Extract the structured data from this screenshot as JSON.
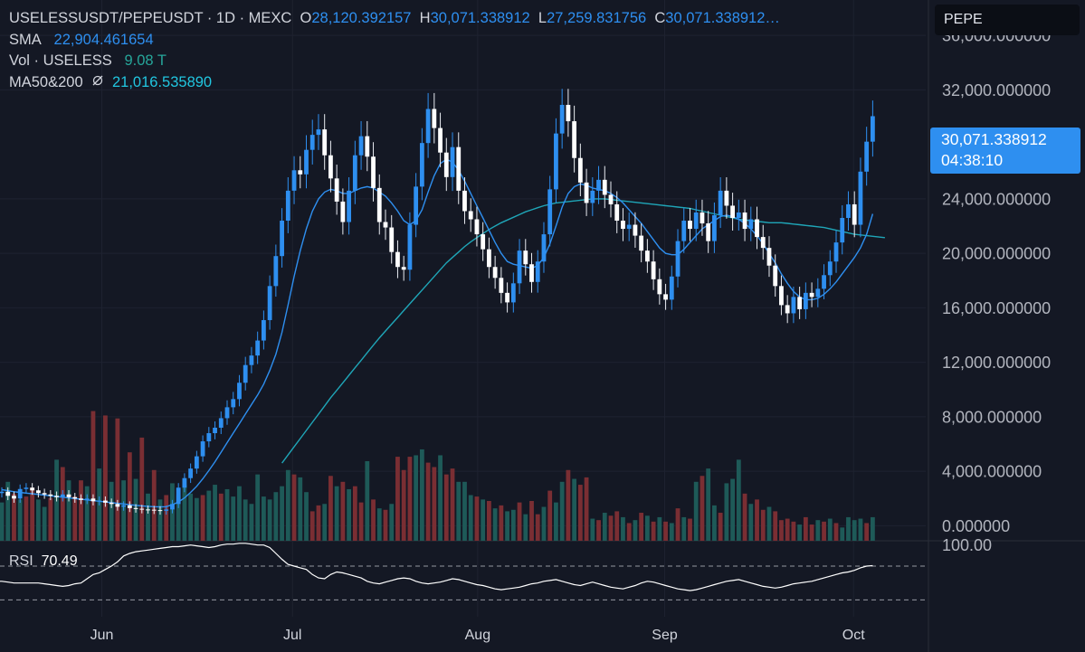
{
  "header": {
    "pair": "USELESSUSDT/PEPEUSDT · 1D · MEXC",
    "ohlc": {
      "o_label": "O",
      "o": "28,120.392157",
      "h_label": "H",
      "h": "30,071.338912",
      "l_label": "L",
      "l": "27,259.831756",
      "c_label": "C",
      "c": "30,071.338912…"
    },
    "sma_label": "SMA",
    "sma_value": "22,904.461654",
    "vol_label": "Vol · USELESS",
    "vol_value": "9.08 T",
    "ma_label": "MA50&200",
    "ma_icon": "hidden-eye-slash-icon",
    "ma_value": "21,016.535890"
  },
  "symbol_search": {
    "value": "PEPE"
  },
  "last_price": {
    "value": "30,071.338912",
    "countdown": "04:38:10"
  },
  "rsi": {
    "label": "RSI",
    "value": "70.49",
    "top_tick": "100.00"
  },
  "colors": {
    "background": "#141824",
    "up": "#2e8ff0",
    "up_body": "#ffffff",
    "down": "#ffffff",
    "volume_up": "#1e5a58",
    "volume_down": "#7a2e33",
    "sma": "#2e8ff0",
    "ma": "#1fa6b8",
    "rsi": "#ffffff"
  },
  "chart_data": {
    "type": "candlestick",
    "title": "USELESSUSDT/PEPEUSDT · 1D · MEXC",
    "y_ticks": [
      "36,000.000000",
      "32,000.000000",
      "24,000.000000",
      "20,000.000000",
      "16,000.000000",
      "12,000.000000",
      "8,000.000000",
      "4,000.000000",
      "0.000000"
    ],
    "y_tick_values": [
      36000,
      32000,
      24000,
      20000,
      16000,
      12000,
      8000,
      4000,
      0
    ],
    "x_ticks": [
      "Jun",
      "Jul",
      "Aug",
      "Sep",
      "Oct"
    ],
    "x_tick_values": [
      0.11,
      0.316,
      0.516,
      0.718,
      0.922
    ],
    "ylim": [
      -1100,
      38600
    ],
    "grid": true,
    "close": [
      2500,
      2200,
      2000,
      2700,
      2800,
      2600,
      2400,
      2300,
      2200,
      2100,
      2300,
      2100,
      2000,
      1900,
      2000,
      1800,
      1850,
      1700,
      1600,
      1400,
      1500,
      1300,
      1250,
      1200,
      1180,
      1150,
      1100,
      1200,
      1600,
      2800,
      3500,
      4200,
      5100,
      6200,
      6800,
      7200,
      7900,
      8700,
      9300,
      10500,
      11800,
      12500,
      13600,
      15100,
      17600,
      19800,
      22400,
      24600,
      26100,
      25800,
      27600,
      28700,
      29100,
      27200,
      25500,
      23800,
      22300,
      24600,
      27200,
      28600,
      27100,
      24800,
      22300,
      21900,
      20100,
      19000,
      18800,
      22100,
      24900,
      28100,
      30600,
      29200,
      27400,
      25600,
      27800,
      24600,
      23100,
      22500,
      21400,
      20300,
      19000,
      18200,
      17100,
      16400,
      17800,
      20200,
      19200,
      17900,
      19400,
      21400,
      24700,
      28800,
      30900,
      29700,
      27000,
      25200,
      23700,
      24600,
      25400,
      24300,
      23600,
      22400,
      21800,
      22100,
      21300,
      20200,
      19400,
      18100,
      17000,
      16600,
      18300,
      20900,
      22400,
      21800,
      23000,
      22200,
      20900,
      22800,
      24600,
      23500,
      22600,
      23000,
      21800,
      22500,
      21200,
      20400,
      19100,
      17600,
      16200,
      15600,
      16800,
      15900,
      17100,
      16800,
      17400,
      18400,
      19400,
      20800,
      22600,
      23600,
      22100,
      26000,
      28200,
      30071
    ],
    "series": [
      {
        "name": "SMA",
        "values": [
          2650,
          2580,
          2500,
          2450,
          2400,
          2350,
          2300,
          2250,
          2200,
          2150,
          2100,
          2050,
          2000,
          1950,
          1900,
          1850,
          1800,
          1750,
          1700,
          1650,
          1600,
          1550,
          1500,
          1460,
          1430,
          1400,
          1390,
          1400,
          1550,
          1750,
          2050,
          2450,
          2900,
          3450,
          4050,
          4700,
          5400,
          6100,
          6800,
          7500,
          8200,
          8900,
          9600,
          10400,
          11400,
          12600,
          14200,
          16200,
          18300,
          20200,
          21800,
          23100,
          24000,
          24500,
          24700,
          24600,
          24400,
          24400,
          24600,
          24800,
          24900,
          24800,
          24500,
          24200,
          23700,
          23100,
          22400,
          22100,
          22400,
          23200,
          24500,
          25700,
          26600,
          26900,
          26700,
          26100,
          25300,
          24400,
          23500,
          22600,
          21700,
          20800,
          20000,
          19400,
          19200,
          19100,
          19000,
          18900,
          19100,
          19700,
          20700,
          22000,
          23400,
          24400,
          24900,
          25100,
          25000,
          24800,
          24700,
          24600,
          24400,
          24100,
          23700,
          23200,
          22700,
          22200,
          21600,
          21000,
          20400,
          20000,
          19900,
          19900,
          20300,
          20800,
          21300,
          21800,
          22100,
          22400,
          22700,
          22800,
          22700,
          22500,
          22200,
          21800,
          21300,
          20700,
          20000,
          19300,
          18500,
          17800,
          17200,
          16800,
          16600,
          16600,
          16700,
          17000,
          17400,
          17900,
          18500,
          19100,
          19700,
          20400,
          21400,
          22900
        ]
      },
      {
        "name": "MA50&200",
        "start_index": 46,
        "values": [
          4600,
          5200,
          5800,
          6400,
          7000,
          7600,
          8200,
          8800,
          9400,
          9950,
          10500,
          11050,
          11600,
          12150,
          12700,
          13250,
          13800,
          14300,
          14800,
          15300,
          15800,
          16300,
          16800,
          17300,
          17800,
          18300,
          18800,
          19300,
          19700,
          20100,
          20500,
          20850,
          21150,
          21450,
          21750,
          22000,
          22250,
          22450,
          22650,
          22850,
          23050,
          23200,
          23350,
          23500,
          23600,
          23700,
          23750,
          23800,
          23850,
          23900,
          23950,
          24000,
          24000,
          24000,
          23950,
          23900,
          23850,
          23800,
          23750,
          23700,
          23650,
          23600,
          23550,
          23500,
          23450,
          23400,
          23350,
          23300,
          23200,
          23100,
          23000,
          22900,
          22800,
          22700,
          22600,
          22500,
          22450,
          22400,
          22350,
          22300,
          22250,
          22250,
          22250,
          22200,
          22150,
          22100,
          22050,
          22000,
          21950,
          21900,
          21800,
          21700,
          21600,
          21500,
          21400,
          21350,
          21300,
          21250,
          21200,
          21150
        ]
      }
    ],
    "volume_ylim": [
      0,
      10.5
    ],
    "volume": [
      {
        "d": 1,
        "v": 2.6
      },
      {
        "d": 1,
        "v": 4.0
      },
      {
        "d": 0,
        "v": 3.2
      },
      {
        "d": 1,
        "v": 2.8
      },
      {
        "d": 0,
        "v": 3.0
      },
      {
        "d": 0,
        "v": 3.6
      },
      {
        "d": 1,
        "v": 2.8
      },
      {
        "d": 1,
        "v": 2.3
      },
      {
        "d": 0,
        "v": 2.9
      },
      {
        "d": 1,
        "v": 5.5
      },
      {
        "d": 0,
        "v": 5.0
      },
      {
        "d": 1,
        "v": 4.1
      },
      {
        "d": 0,
        "v": 3.0
      },
      {
        "d": 0,
        "v": 4.1
      },
      {
        "d": 1,
        "v": 3.7
      },
      {
        "d": 0,
        "v": 8.8
      },
      {
        "d": 1,
        "v": 4.9
      },
      {
        "d": 0,
        "v": 8.5
      },
      {
        "d": 1,
        "v": 4.0
      },
      {
        "d": 0,
        "v": 8.3
      },
      {
        "d": 1,
        "v": 4.1
      },
      {
        "d": 0,
        "v": 6.0
      },
      {
        "d": 1,
        "v": 4.2
      },
      {
        "d": 0,
        "v": 7.0
      },
      {
        "d": 1,
        "v": 3.2
      },
      {
        "d": 0,
        "v": 4.8
      },
      {
        "d": 1,
        "v": 2.8
      },
      {
        "d": 0,
        "v": 3.1
      },
      {
        "d": 1,
        "v": 3.9
      },
      {
        "d": 1,
        "v": 3.1
      },
      {
        "d": 1,
        "v": 3.8
      },
      {
        "d": 1,
        "v": 3.2
      },
      {
        "d": 1,
        "v": 2.9
      },
      {
        "d": 0,
        "v": 3.1
      },
      {
        "d": 1,
        "v": 3.4
      },
      {
        "d": 1,
        "v": 3.8
      },
      {
        "d": 0,
        "v": 3.2
      },
      {
        "d": 1,
        "v": 3.5
      },
      {
        "d": 1,
        "v": 3.0
      },
      {
        "d": 1,
        "v": 3.7
      },
      {
        "d": 1,
        "v": 2.8
      },
      {
        "d": 1,
        "v": 2.5
      },
      {
        "d": 1,
        "v": 4.5
      },
      {
        "d": 1,
        "v": 3.0
      },
      {
        "d": 1,
        "v": 2.8
      },
      {
        "d": 1,
        "v": 3.3
      },
      {
        "d": 1,
        "v": 3.7
      },
      {
        "d": 1,
        "v": 4.8
      },
      {
        "d": 0,
        "v": 4.5
      },
      {
        "d": 1,
        "v": 4.3
      },
      {
        "d": 1,
        "v": 3.3
      },
      {
        "d": 0,
        "v": 2.0
      },
      {
        "d": 0,
        "v": 2.4
      },
      {
        "d": 1,
        "v": 2.5
      },
      {
        "d": 0,
        "v": 4.4
      },
      {
        "d": 1,
        "v": 3.7
      },
      {
        "d": 0,
        "v": 4.0
      },
      {
        "d": 1,
        "v": 3.5
      },
      {
        "d": 0,
        "v": 3.7
      },
      {
        "d": 0,
        "v": 2.6
      },
      {
        "d": 1,
        "v": 5.4
      },
      {
        "d": 0,
        "v": 2.8
      },
      {
        "d": 1,
        "v": 2.2
      },
      {
        "d": 0,
        "v": 2.1
      },
      {
        "d": 1,
        "v": 2.5
      },
      {
        "d": 0,
        "v": 5.7
      },
      {
        "d": 0,
        "v": 4.8
      },
      {
        "d": 0,
        "v": 5.7
      },
      {
        "d": 1,
        "v": 5.8
      },
      {
        "d": 1,
        "v": 6.2
      },
      {
        "d": 0,
        "v": 5.3
      },
      {
        "d": 0,
        "v": 5.0
      },
      {
        "d": 1,
        "v": 5.8
      },
      {
        "d": 0,
        "v": 4.5
      },
      {
        "d": 0,
        "v": 4.9
      },
      {
        "d": 1,
        "v": 4.0
      },
      {
        "d": 1,
        "v": 4.0
      },
      {
        "d": 1,
        "v": 3.1
      },
      {
        "d": 0,
        "v": 3.0
      },
      {
        "d": 1,
        "v": 2.8
      },
      {
        "d": 0,
        "v": 2.7
      },
      {
        "d": 1,
        "v": 2.2
      },
      {
        "d": 0,
        "v": 2.4
      },
      {
        "d": 1,
        "v": 2.0
      },
      {
        "d": 1,
        "v": 2.1
      },
      {
        "d": 0,
        "v": 2.6
      },
      {
        "d": 1,
        "v": 1.8
      },
      {
        "d": 0,
        "v": 2.7
      },
      {
        "d": 0,
        "v": 1.8
      },
      {
        "d": 1,
        "v": 2.3
      },
      {
        "d": 0,
        "v": 3.4
      },
      {
        "d": 1,
        "v": 2.6
      },
      {
        "d": 1,
        "v": 4.0
      },
      {
        "d": 0,
        "v": 4.8
      },
      {
        "d": 1,
        "v": 4.2
      },
      {
        "d": 0,
        "v": 3.8
      },
      {
        "d": 0,
        "v": 4.3
      },
      {
        "d": 1,
        "v": 1.5
      },
      {
        "d": 0,
        "v": 1.4
      },
      {
        "d": 1,
        "v": 1.9
      },
      {
        "d": 0,
        "v": 1.7
      },
      {
        "d": 0,
        "v": 2.0
      },
      {
        "d": 1,
        "v": 1.6
      },
      {
        "d": 0,
        "v": 1.2
      },
      {
        "d": 1,
        "v": 1.4
      },
      {
        "d": 0,
        "v": 1.9
      },
      {
        "d": 1,
        "v": 1.7
      },
      {
        "d": 0,
        "v": 1.3
      },
      {
        "d": 1,
        "v": 1.6
      },
      {
        "d": 0,
        "v": 1.3
      },
      {
        "d": 1,
        "v": 1.2
      },
      {
        "d": 0,
        "v": 2.2
      },
      {
        "d": 1,
        "v": 1.6
      },
      {
        "d": 0,
        "v": 1.5
      },
      {
        "d": 1,
        "v": 4.0
      },
      {
        "d": 0,
        "v": 4.4
      },
      {
        "d": 1,
        "v": 4.9
      },
      {
        "d": 1,
        "v": 2.4
      },
      {
        "d": 0,
        "v": 1.9
      },
      {
        "d": 1,
        "v": 3.9
      },
      {
        "d": 1,
        "v": 4.2
      },
      {
        "d": 1,
        "v": 5.5
      },
      {
        "d": 0,
        "v": 3.2
      },
      {
        "d": 1,
        "v": 2.5
      },
      {
        "d": 0,
        "v": 2.8
      },
      {
        "d": 0,
        "v": 2.1
      },
      {
        "d": 1,
        "v": 2.3
      },
      {
        "d": 0,
        "v": 2.0
      },
      {
        "d": 0,
        "v": 1.4
      },
      {
        "d": 0,
        "v": 1.5
      },
      {
        "d": 0,
        "v": 1.3
      },
      {
        "d": 1,
        "v": 1.1
      },
      {
        "d": 0,
        "v": 1.6
      },
      {
        "d": 0,
        "v": 1.1
      },
      {
        "d": 1,
        "v": 1.4
      },
      {
        "d": 0,
        "v": 1.3
      },
      {
        "d": 1,
        "v": 1.5
      },
      {
        "d": 0,
        "v": 1.2
      },
      {
        "d": 1,
        "v": 0.9
      },
      {
        "d": 1,
        "v": 1.6
      },
      {
        "d": 1,
        "v": 1.4
      },
      {
        "d": 1,
        "v": 1.5
      },
      {
        "d": 0,
        "v": 1.2
      },
      {
        "d": 1,
        "v": 1.6
      }
    ],
    "rsi_series": [
      52,
      52,
      51,
      50,
      50,
      50,
      50,
      50,
      49,
      48,
      47,
      46,
      47,
      49,
      50,
      55,
      60,
      62,
      66,
      70,
      75,
      82,
      85,
      87,
      88,
      89,
      90,
      91,
      92,
      93,
      93,
      94,
      95,
      94,
      93,
      92,
      93,
      95,
      96,
      96,
      97,
      97,
      96,
      95,
      95,
      92,
      85,
      78,
      72,
      70,
      68,
      66,
      60,
      56,
      55,
      60,
      63,
      62,
      60,
      58,
      56,
      52,
      50,
      49,
      51,
      53,
      55,
      56,
      55,
      52,
      50,
      49,
      50,
      51,
      53,
      55,
      54,
      52,
      50,
      48,
      47,
      45,
      43,
      42,
      43,
      44,
      45,
      47,
      49,
      50,
      52,
      53,
      54,
      52,
      50,
      48,
      47,
      49,
      51,
      49,
      47,
      45,
      44,
      43,
      45,
      47,
      50,
      52,
      51,
      49,
      47,
      45,
      43,
      42,
      41,
      42,
      44,
      46,
      48,
      50,
      52,
      53,
      54,
      52,
      50,
      48,
      46,
      45,
      44,
      45,
      47,
      49,
      50,
      51,
      52,
      54,
      56,
      58,
      60,
      62,
      63,
      65,
      68,
      70,
      70.49
    ],
    "rsi_ylim": [
      10,
      100
    ],
    "rsi_bands": [
      70,
      30
    ]
  }
}
